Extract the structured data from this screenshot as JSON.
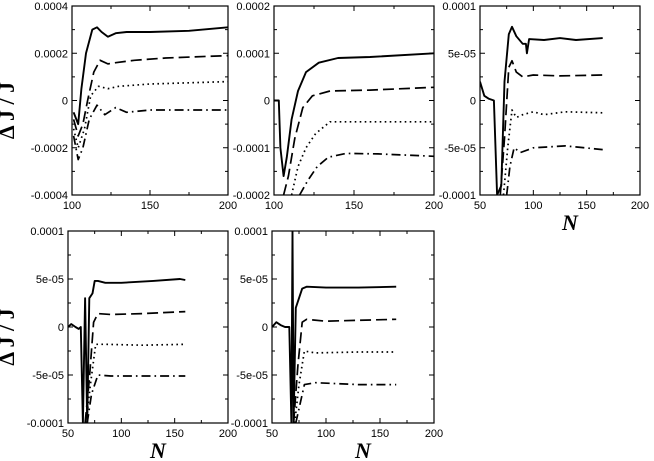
{
  "chart_data": [
    {
      "type": "line",
      "panel": "top-left",
      "xlim": [
        100,
        200
      ],
      "ylim": [
        -0.0004,
        0.0004
      ],
      "xticks": [
        "100",
        "150",
        "200"
      ],
      "yticks": [
        "-0.0004",
        "-0.0002",
        "0",
        "0.0002",
        "0.0004"
      ],
      "xlabel": "",
      "ylabel": "Δ J / J",
      "series": [
        {
          "name": "solid",
          "style": "solid",
          "points": [
            [
              101,
              -5e-05
            ],
            [
              104,
              -0.0001
            ],
            [
              106,
              5e-05
            ],
            [
              109,
              0.0002
            ],
            [
              113,
              0.0003
            ],
            [
              116,
              0.00031
            ],
            [
              119,
              0.00029
            ],
            [
              123,
              0.00027
            ],
            [
              128,
              0.000285
            ],
            [
              135,
              0.00029
            ],
            [
              150,
              0.00029
            ],
            [
              175,
              0.000295
            ],
            [
              200,
              0.00031
            ]
          ]
        },
        {
          "name": "dashed",
          "style": "dashed",
          "points": [
            [
              101,
              -8e-05
            ],
            [
              104,
              -0.00015
            ],
            [
              107,
              -0.0001
            ],
            [
              110,
              0.0
            ],
            [
              114,
              0.00012
            ],
            [
              118,
              0.00017
            ],
            [
              123,
              0.000155
            ],
            [
              128,
              0.00016
            ],
            [
              140,
              0.00017
            ],
            [
              160,
              0.00018
            ],
            [
              200,
              0.00019
            ]
          ]
        },
        {
          "name": "dotted",
          "style": "dotted",
          "points": [
            [
              101,
              -0.00012
            ],
            [
              104,
              -0.0002
            ],
            [
              108,
              -0.00012
            ],
            [
              112,
              2e-05
            ],
            [
              117,
              6e-05
            ],
            [
              123,
              5e-05
            ],
            [
              130,
              6e-05
            ],
            [
              150,
              7e-05
            ],
            [
              200,
              8e-05
            ]
          ]
        },
        {
          "name": "dash-dot",
          "style": "dash-dot",
          "points": [
            [
              101,
              -0.00015
            ],
            [
              104,
              -0.00025
            ],
            [
              107,
              -0.0002
            ],
            [
              111,
              -8e-05
            ],
            [
              116,
              -2e-05
            ],
            [
              121,
              -6e-05
            ],
            [
              128,
              -3e-05
            ],
            [
              135,
              -5e-05
            ],
            [
              150,
              -4e-05
            ],
            [
              200,
              -4e-05
            ]
          ]
        }
      ]
    },
    {
      "type": "line",
      "panel": "top-middle",
      "xlim": [
        100,
        200
      ],
      "ylim": [
        -0.0002,
        0.0002
      ],
      "xticks": [
        "100",
        "150",
        "200"
      ],
      "yticks": [
        "-0.0002",
        "-0.0001",
        "0",
        "0.0001",
        "0.0002"
      ],
      "xlabel": "",
      "ylabel": "",
      "series": [
        {
          "name": "solid",
          "style": "solid",
          "points": [
            [
              100,
              0.0
            ],
            [
              103,
              0.0
            ],
            [
              104,
              -0.0001
            ],
            [
              106,
              -0.00016
            ],
            [
              108,
              -0.00012
            ],
            [
              111,
              -4e-05
            ],
            [
              115,
              2e-05
            ],
            [
              120,
              6e-05
            ],
            [
              128,
              8e-05
            ],
            [
              140,
              9e-05
            ],
            [
              160,
              9.2e-05
            ],
            [
              200,
              0.0001
            ]
          ]
        },
        {
          "name": "dashed",
          "style": "dashed",
          "points": [
            [
              106,
              -0.0002
            ],
            [
              109,
              -0.00016
            ],
            [
              113,
              -8e-05
            ],
            [
              118,
              -1.5e-05
            ],
            [
              124,
              1e-05
            ],
            [
              135,
              2e-05
            ],
            [
              160,
              2.2e-05
            ],
            [
              200,
              2.8e-05
            ]
          ]
        },
        {
          "name": "dotted",
          "style": "dotted",
          "points": [
            [
              111,
              -0.0002
            ],
            [
              115,
              -0.00014
            ],
            [
              120,
              -0.0001
            ],
            [
              126,
              -7e-05
            ],
            [
              135,
              -4.5e-05
            ],
            [
              160,
              -4.5e-05
            ],
            [
              200,
              -4.5e-05
            ]
          ]
        },
        {
          "name": "dash-dot",
          "style": "dash-dot",
          "points": [
            [
              116,
              -0.0002
            ],
            [
              121,
              -0.00017
            ],
            [
              127,
              -0.00014
            ],
            [
              134,
              -0.00012
            ],
            [
              145,
              -0.000112
            ],
            [
              165,
              -0.000113
            ],
            [
              200,
              -0.000118
            ]
          ]
        }
      ]
    },
    {
      "type": "line",
      "panel": "top-right",
      "xlim": [
        50,
        200
      ],
      "ylim": [
        -0.0001,
        0.0001
      ],
      "xticks": [
        "50",
        "100",
        "150",
        "200"
      ],
      "yticks": [
        "-0.0001",
        "-5e-05",
        "0",
        "5e-05",
        "0.0001"
      ],
      "xlabel": "N",
      "ylabel": "",
      "series": [
        {
          "name": "solid",
          "style": "solid",
          "points": [
            [
              50,
              2e-05
            ],
            [
              54,
              5e-06
            ],
            [
              58,
              2e-06
            ],
            [
              63,
              0.0
            ],
            [
              66,
              -0.0001
            ],
            [
              70,
              -9e-05
            ],
            [
              73,
              2e-05
            ],
            [
              77,
              7e-05
            ],
            [
              80,
              7.8e-05
            ],
            [
              84,
              6.8e-05
            ],
            [
              90,
              6e-05
            ],
            [
              93,
              6e-05
            ],
            [
              94,
              5e-05
            ],
            [
              96,
              6.5e-05
            ],
            [
              110,
              6.4e-05
            ],
            [
              125,
              6.6e-05
            ],
            [
              140,
              6.4e-05
            ],
            [
              165,
              6.6e-05
            ]
          ]
        },
        {
          "name": "dashed",
          "style": "dashed",
          "points": [
            [
              69,
              -0.0001
            ],
            [
              73,
              -4e-05
            ],
            [
              77,
              3.5e-05
            ],
            [
              80,
              4.2e-05
            ],
            [
              84,
              3e-05
            ],
            [
              90,
              2.5e-05
            ],
            [
              100,
              2.7e-05
            ],
            [
              125,
              2.6e-05
            ],
            [
              165,
              2.7e-05
            ]
          ]
        },
        {
          "name": "dotted",
          "style": "dotted",
          "points": [
            [
              72,
              -0.0001
            ],
            [
              76,
              -5e-05
            ],
            [
              80,
              -1e-05
            ],
            [
              84,
              -1.8e-05
            ],
            [
              90,
              -1.5e-05
            ],
            [
              100,
              -1.2e-05
            ],
            [
              110,
              -1.5e-05
            ],
            [
              130,
              -1.2e-05
            ],
            [
              165,
              -1.3e-05
            ]
          ]
        },
        {
          "name": "dash-dot",
          "style": "dash-dot",
          "points": [
            [
              75,
              -0.0001
            ],
            [
              78,
              -7e-05
            ],
            [
              82,
              -5e-05
            ],
            [
              88,
              -5.5e-05
            ],
            [
              100,
              -5e-05
            ],
            [
              130,
              -4.8e-05
            ],
            [
              165,
              -5.2e-05
            ]
          ]
        }
      ]
    },
    {
      "type": "line",
      "panel": "bottom-left",
      "xlim": [
        50,
        200
      ],
      "ylim": [
        -0.0001,
        0.0001
      ],
      "xticks": [
        "50",
        "100",
        "150",
        "200"
      ],
      "yticks": [
        "-0.0001",
        "-5e-05",
        "0",
        "5e-05",
        "0.0001"
      ],
      "xlabel": "N",
      "ylabel": "Δ J / J",
      "series": [
        {
          "name": "solid",
          "style": "solid",
          "points": [
            [
              50,
              0.0
            ],
            [
              53,
              3e-06
            ],
            [
              57,
              0.0
            ],
            [
              60,
              -2e-06
            ],
            [
              62,
              0.0
            ],
            [
              64,
              -0.0001
            ],
            [
              66,
              3e-05
            ],
            [
              68,
              -0.0001
            ],
            [
              70,
              3e-05
            ],
            [
              73,
              3.5e-05
            ],
            [
              75,
              4.8e-05
            ],
            [
              78,
              4.8e-05
            ],
            [
              85,
              4.6e-05
            ],
            [
              100,
              4.6e-05
            ],
            [
              130,
              4.8e-05
            ],
            [
              155,
              5e-05
            ],
            [
              160,
              4.9e-05
            ]
          ]
        },
        {
          "name": "dashed",
          "style": "dashed",
          "points": [
            [
              66,
              -0.0001
            ],
            [
              70,
              -5.5e-05
            ],
            [
              74,
              5e-06
            ],
            [
              78,
              1.4e-05
            ],
            [
              90,
              1.3e-05
            ],
            [
              120,
              1.4e-05
            ],
            [
              160,
              1.6e-05
            ]
          ]
        },
        {
          "name": "dotted",
          "style": "dotted",
          "points": [
            [
              67,
              -0.0001
            ],
            [
              71,
              -6e-05
            ],
            [
              76,
              -1.8e-05
            ],
            [
              85,
              -1.8e-05
            ],
            [
              120,
              -1.9e-05
            ],
            [
              160,
              -1.8e-05
            ]
          ]
        },
        {
          "name": "dash-dot",
          "style": "dash-dot",
          "points": [
            [
              68,
              -0.0001
            ],
            [
              72,
              -7e-05
            ],
            [
              78,
              -5e-05
            ],
            [
              90,
              -5.1e-05
            ],
            [
              120,
              -5.1e-05
            ],
            [
              160,
              -5.1e-05
            ]
          ]
        }
      ]
    },
    {
      "type": "line",
      "panel": "bottom-middle",
      "xlim": [
        50,
        200
      ],
      "ylim": [
        -0.0001,
        0.0001
      ],
      "xticks": [
        "50",
        "100",
        "150",
        "200"
      ],
      "yticks": [
        "-0.0001",
        "-5e-05",
        "0",
        "5e-05",
        "0.0001"
      ],
      "xlabel": "N",
      "ylabel": "",
      "series": [
        {
          "name": "solid",
          "style": "solid",
          "points": [
            [
              50,
              0.0
            ],
            [
              54,
              5e-06
            ],
            [
              58,
              2e-06
            ],
            [
              62,
              0.0
            ],
            [
              66,
              0.0
            ],
            [
              68,
              -0.0001
            ],
            [
              69,
              0.0001
            ],
            [
              70,
              -0.0001
            ],
            [
              72,
              2e-05
            ],
            [
              75,
              3e-05
            ],
            [
              78,
              4e-05
            ],
            [
              82,
              4.2e-05
            ],
            [
              100,
              4.1e-05
            ],
            [
              130,
              4.1e-05
            ],
            [
              165,
              4.2e-05
            ]
          ]
        },
        {
          "name": "dashed",
          "style": "dashed",
          "points": [
            [
              70,
              -0.0001
            ],
            [
              74,
              -4e-05
            ],
            [
              78,
              5e-06
            ],
            [
              82,
              8e-06
            ],
            [
              100,
              6e-06
            ],
            [
              130,
              7e-06
            ],
            [
              165,
              8e-06
            ]
          ]
        },
        {
          "name": "dotted",
          "style": "dotted",
          "points": [
            [
              71,
              -0.0001
            ],
            [
              75,
              -6e-05
            ],
            [
              80,
              -2.5e-05
            ],
            [
              90,
              -2.7e-05
            ],
            [
              130,
              -2.6e-05
            ],
            [
              165,
              -2.6e-05
            ]
          ]
        },
        {
          "name": "dash-dot",
          "style": "dash-dot",
          "points": [
            [
              72,
              -0.0001
            ],
            [
              76,
              -8e-05
            ],
            [
              80,
              -6e-05
            ],
            [
              90,
              -5.8e-05
            ],
            [
              130,
              -6e-05
            ],
            [
              165,
              -6e-05
            ]
          ]
        }
      ]
    }
  ]
}
